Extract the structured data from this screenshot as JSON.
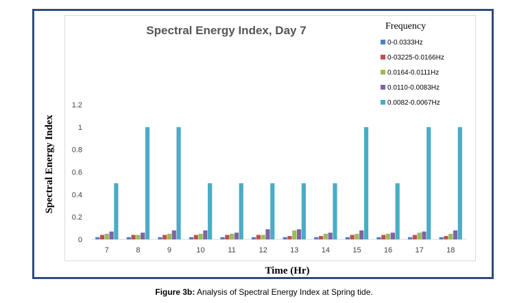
{
  "chart_data": {
    "type": "bar",
    "title": "Spectral Energy Index, Day 7",
    "xlabel": "Time (Hr)",
    "ylabel": "Spectral Energy Index",
    "categories": [
      "7",
      "8",
      "9",
      "10",
      "11",
      "12",
      "13",
      "14",
      "15",
      "16",
      "17",
      "18"
    ],
    "ylim": [
      0,
      1.2
    ],
    "yticks": [
      "0",
      "0.2",
      "0.4",
      "0.6",
      "0.8",
      "1",
      "1.2"
    ],
    "grid": false,
    "legend_title": "Frequency",
    "legend_position": "top-right",
    "series": [
      {
        "name": "0-0.0333Hz",
        "color": "#4f81bd",
        "values": [
          0.02,
          0.02,
          0.02,
          0.02,
          0.02,
          0.02,
          0.02,
          0.02,
          0.02,
          0.02,
          0.02,
          0.02
        ]
      },
      {
        "name": "0-03225-0.0166Hz",
        "color": "#c0504d",
        "values": [
          0.04,
          0.04,
          0.04,
          0.04,
          0.04,
          0.04,
          0.03,
          0.03,
          0.04,
          0.04,
          0.04,
          0.03
        ]
      },
      {
        "name": "0.0164-0.0111Hz",
        "color": "#9bbb59",
        "values": [
          0.05,
          0.04,
          0.05,
          0.05,
          0.05,
          0.04,
          0.08,
          0.05,
          0.05,
          0.05,
          0.06,
          0.05
        ]
      },
      {
        "name": "0.0110-0.0083Hz",
        "color": "#8064a2",
        "values": [
          0.07,
          0.06,
          0.08,
          0.08,
          0.06,
          0.09,
          0.09,
          0.06,
          0.08,
          0.06,
          0.07,
          0.08
        ]
      },
      {
        "name": "0.0082-0.0067Hz",
        "color": "#4bacc6",
        "values": [
          0.5,
          1.0,
          1.0,
          0.5,
          0.5,
          0.5,
          0.5,
          0.5,
          1.0,
          0.5,
          1.0,
          1.0
        ]
      }
    ]
  },
  "caption": {
    "label": "Figure 3b:",
    "text": " Analysis of Spectral Energy Index at Spring tide."
  }
}
